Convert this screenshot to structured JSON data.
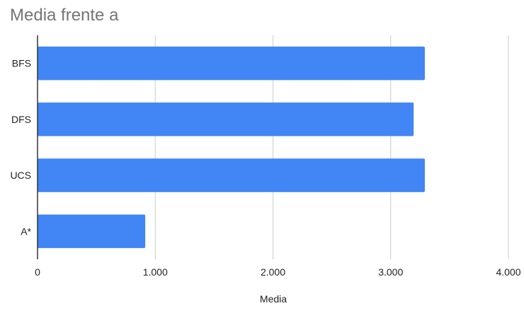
{
  "chart_data": {
    "type": "bar",
    "orientation": "horizontal",
    "title": "Media frente a",
    "xlabel": "Media",
    "ylabel": "",
    "categories": [
      "BFS",
      "DFS",
      "UCS",
      "A*"
    ],
    "values": [
      3290,
      3195,
      3290,
      915
    ],
    "xlim": [
      0,
      4000
    ],
    "x_ticks": [
      "0",
      "1.000",
      "2.000",
      "3.000",
      "4.000"
    ],
    "grid": "vertical",
    "legend": "none",
    "bar_color": "#4285f4"
  }
}
